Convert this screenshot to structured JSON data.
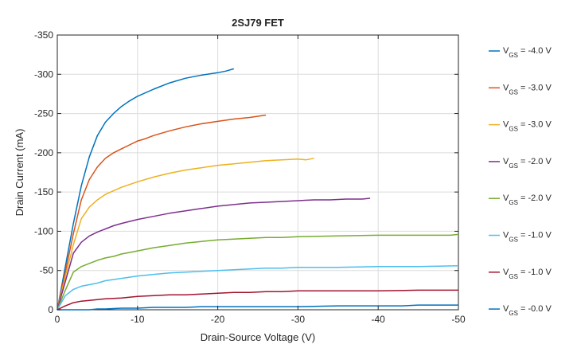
{
  "chart_data": {
    "type": "line",
    "title": "2SJ79 FET",
    "xlabel": "Drain-Source Voltage (V)",
    "ylabel": "Drain Current (mA)",
    "xlim": [
      0,
      -50
    ],
    "ylim": [
      0,
      -350
    ],
    "xticks": [
      0,
      -10,
      -20,
      -30,
      -40,
      -50
    ],
    "xtick_labels": [
      "0",
      "-10",
      "-20",
      "-30",
      "-40",
      "-50"
    ],
    "yticks": [
      0,
      -50,
      -100,
      -150,
      -200,
      -250,
      -300,
      -350
    ],
    "ytick_labels": [
      "0",
      "-50",
      "-100",
      "-150",
      "-200",
      "-250",
      "-300",
      "-350"
    ],
    "grid": true,
    "legend_position": "outside-right",
    "series": [
      {
        "name": "V",
        "sub": "GS",
        "suffix": " = -4.0 V",
        "color": "#0072BD",
        "x": [
          0,
          -1,
          -2,
          -3,
          -4,
          -5,
          -6,
          -7,
          -8,
          -9,
          -10,
          -12,
          -14,
          -16,
          -18,
          -20,
          -21,
          -22
        ],
        "y": [
          0,
          -55,
          -110,
          -158,
          -195,
          -222,
          -239,
          -250,
          -259,
          -266,
          -272,
          -281,
          -289,
          -295,
          -299,
          -302,
          -304,
          -307
        ]
      },
      {
        "name": "V",
        "sub": "GS",
        "suffix": " = -3.0 V",
        "color": "#D95319",
        "x": [
          0,
          -1,
          -2,
          -3,
          -4,
          -5,
          -6,
          -7,
          -8,
          -9,
          -10,
          -11,
          -12,
          -14,
          -16,
          -18,
          -20,
          -22,
          -24,
          -26
        ],
        "y": [
          0,
          -48,
          -97,
          -140,
          -166,
          -182,
          -193,
          -200,
          -205,
          -210,
          -215,
          -218,
          -222,
          -228,
          -233,
          -237,
          -240,
          -243,
          -245,
          -248
        ]
      },
      {
        "name": "V",
        "sub": "GS",
        "suffix": " = -3.0 V",
        "color": "#EDB120",
        "x": [
          0,
          -1,
          -2,
          -3,
          -4,
          -5,
          -6,
          -8,
          -10,
          -12,
          -14,
          -16,
          -18,
          -20,
          -22,
          -24,
          -26,
          -28,
          -30,
          -31,
          -32
        ],
        "y": [
          0,
          -42,
          -83,
          -116,
          -131,
          -140,
          -147,
          -156,
          -163,
          -169,
          -174,
          -178,
          -181,
          -184,
          -186,
          -188,
          -190,
          -191,
          -192,
          -191,
          -193
        ]
      },
      {
        "name": "V",
        "sub": "GS",
        "suffix": " = -2.0 V",
        "color": "#7E2F8E",
        "x": [
          0,
          -1,
          -2,
          -3,
          -4,
          -5,
          -6,
          -7,
          -8,
          -10,
          -12,
          -14,
          -16,
          -18,
          -20,
          -22,
          -24,
          -26,
          -28,
          -30,
          -32,
          -34,
          -36,
          -38,
          -39
        ],
        "y": [
          0,
          -36,
          -72,
          -86,
          -94,
          -99,
          -103,
          -107,
          -110,
          -115,
          -119,
          -123,
          -126,
          -129,
          -132,
          -134,
          -136,
          -137,
          -138,
          -139,
          -140,
          -140,
          -141,
          -141,
          -142
        ]
      },
      {
        "name": "V",
        "sub": "GS",
        "suffix": " = -2.0 V",
        "color": "#77AC30",
        "x": [
          0,
          -1,
          -2,
          -3,
          -4,
          -5,
          -6,
          -7,
          -8,
          -10,
          -12,
          -14,
          -16,
          -18,
          -20,
          -22,
          -24,
          -26,
          -28,
          -30,
          -35,
          -40,
          -45,
          -49,
          -50
        ],
        "y": [
          0,
          -25,
          -48,
          -55,
          -59,
          -63,
          -66,
          -68,
          -71,
          -75,
          -79,
          -82,
          -85,
          -87,
          -89,
          -90,
          -91,
          -92,
          -92,
          -93,
          -94,
          -95,
          -95,
          -95,
          -96
        ]
      },
      {
        "name": "V",
        "sub": "GS",
        "suffix": " = -1.0 V",
        "color": "#4DBEEE",
        "x": [
          0,
          -1,
          -2,
          -3,
          -4,
          -5,
          -6,
          -8,
          -10,
          -12,
          -14,
          -16,
          -18,
          -20,
          -22,
          -24,
          -26,
          -28,
          -30,
          -35,
          -40,
          -45,
          -50
        ],
        "y": [
          0,
          -18,
          -26,
          -30,
          -32,
          -34,
          -37,
          -40,
          -43,
          -45,
          -47,
          -48,
          -49,
          -50,
          -51,
          -52,
          -53,
          -53,
          -54,
          -54,
          -55,
          -55,
          -56
        ]
      },
      {
        "name": "V",
        "sub": "GS",
        "suffix": " = -1.0 V",
        "color": "#A2142F",
        "x": [
          0,
          -1,
          -2,
          -3,
          -4,
          -5,
          -6,
          -8,
          -10,
          -12,
          -14,
          -16,
          -18,
          -20,
          -22,
          -24,
          -26,
          -28,
          -30,
          -35,
          -40,
          -45,
          -50
        ],
        "y": [
          0,
          -5,
          -9,
          -11,
          -12,
          -13,
          -14,
          -15,
          -17,
          -18,
          -19,
          -19,
          -20,
          -21,
          -22,
          -22,
          -23,
          -23,
          -24,
          -24,
          -24,
          -25,
          -25
        ]
      },
      {
        "name": "V",
        "sub": "GS",
        "suffix": " = -0.0 V",
        "color": "#0072BD",
        "x": [
          0,
          -2,
          -4,
          -5,
          -6,
          -8,
          -10,
          -12,
          -14,
          -16,
          -18,
          -20,
          -25,
          -30,
          -35,
          -40,
          -43,
          -45,
          -50
        ],
        "y": [
          0,
          0,
          0,
          -1,
          -1,
          -2,
          -2,
          -3,
          -3,
          -3,
          -4,
          -4,
          -4,
          -4,
          -5,
          -5,
          -5,
          -6,
          -6
        ]
      }
    ]
  }
}
